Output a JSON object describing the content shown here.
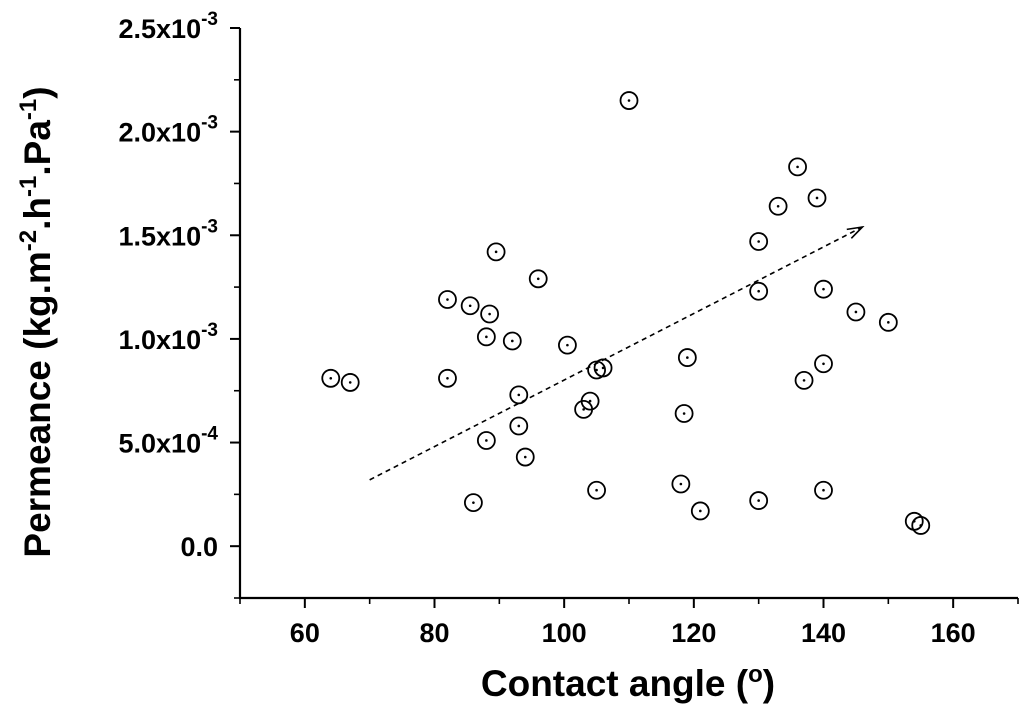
{
  "chart_data": {
    "type": "scatter",
    "xlabel": "Contact angle (°)",
    "xlabel_main": "Contact angle (",
    "xlabel_sup": "o",
    "xlabel_close": ")",
    "ylabel_parts": [
      "Permeance (kg.m",
      "-2",
      ".h",
      "-1",
      ".Pa",
      "-1",
      ")"
    ],
    "xlim": [
      50,
      170
    ],
    "ylim": [
      -0.00025,
      0.0025
    ],
    "x_ticks": [
      {
        "value": 60,
        "label": "60"
      },
      {
        "value": 80,
        "label": "80"
      },
      {
        "value": 100,
        "label": "100"
      },
      {
        "value": 120,
        "label": "120"
      },
      {
        "value": 140,
        "label": "140"
      },
      {
        "value": 160,
        "label": "160"
      }
    ],
    "x_minor_ticks": [
      50,
      70,
      90,
      110,
      130,
      150,
      170
    ],
    "y_ticks": [
      {
        "value": 0,
        "base": "0.0",
        "exp": ""
      },
      {
        "value": 0.0005,
        "base": "5.0x10",
        "exp": "-4"
      },
      {
        "value": 0.001,
        "base": "1.0x10",
        "exp": "-3"
      },
      {
        "value": 0.0015,
        "base": "1.5x10",
        "exp": "-3"
      },
      {
        "value": 0.002,
        "base": "2.0x10",
        "exp": "-3"
      },
      {
        "value": 0.0025,
        "base": "2.5x10",
        "exp": "-3"
      }
    ],
    "y_minor_ticks": [
      -0.00025,
      0.00025,
      0.00075,
      0.00125,
      0.00175,
      0.00225
    ],
    "grid": false,
    "legend": "none",
    "series": [
      {
        "marker": "circle-with-center-dot",
        "color": "#000000",
        "points": [
          {
            "x": 64,
            "y": 0.00081
          },
          {
            "x": 67,
            "y": 0.00079
          },
          {
            "x": 82,
            "y": 0.00119
          },
          {
            "x": 82,
            "y": 0.00081
          },
          {
            "x": 85.5,
            "y": 0.00116
          },
          {
            "x": 86,
            "y": 0.00021
          },
          {
            "x": 88,
            "y": 0.00101
          },
          {
            "x": 88,
            "y": 0.00051
          },
          {
            "x": 88.5,
            "y": 0.00112
          },
          {
            "x": 89.5,
            "y": 0.00142
          },
          {
            "x": 92,
            "y": 0.00099
          },
          {
            "x": 93,
            "y": 0.00073
          },
          {
            "x": 93,
            "y": 0.00058
          },
          {
            "x": 94,
            "y": 0.00043
          },
          {
            "x": 96,
            "y": 0.00129
          },
          {
            "x": 100.5,
            "y": 0.00097
          },
          {
            "x": 103,
            "y": 0.00066
          },
          {
            "x": 104,
            "y": 0.0007
          },
          {
            "x": 105,
            "y": 0.00085
          },
          {
            "x": 105,
            "y": 0.00027
          },
          {
            "x": 106,
            "y": 0.00086
          },
          {
            "x": 110,
            "y": 0.00215
          },
          {
            "x": 118,
            "y": 0.0003
          },
          {
            "x": 118.5,
            "y": 0.00064
          },
          {
            "x": 119,
            "y": 0.00091
          },
          {
            "x": 121,
            "y": 0.00017
          },
          {
            "x": 130,
            "y": 0.00147
          },
          {
            "x": 130,
            "y": 0.00123
          },
          {
            "x": 130,
            "y": 0.00022
          },
          {
            "x": 133,
            "y": 0.00164
          },
          {
            "x": 136,
            "y": 0.00183
          },
          {
            "x": 137,
            "y": 0.0008
          },
          {
            "x": 139,
            "y": 0.00168
          },
          {
            "x": 140,
            "y": 0.00124
          },
          {
            "x": 140,
            "y": 0.00088
          },
          {
            "x": 140,
            "y": 0.00027
          },
          {
            "x": 145,
            "y": 0.00113
          },
          {
            "x": 150,
            "y": 0.00108
          },
          {
            "x": 154,
            "y": 0.00012
          },
          {
            "x": 155,
            "y": 0.0001
          }
        ]
      }
    ],
    "annotations": [
      {
        "type": "dashed-arrow",
        "from": {
          "x": 70,
          "y": 0.00032
        },
        "to": {
          "x": 146,
          "y": 0.00154
        }
      }
    ]
  }
}
